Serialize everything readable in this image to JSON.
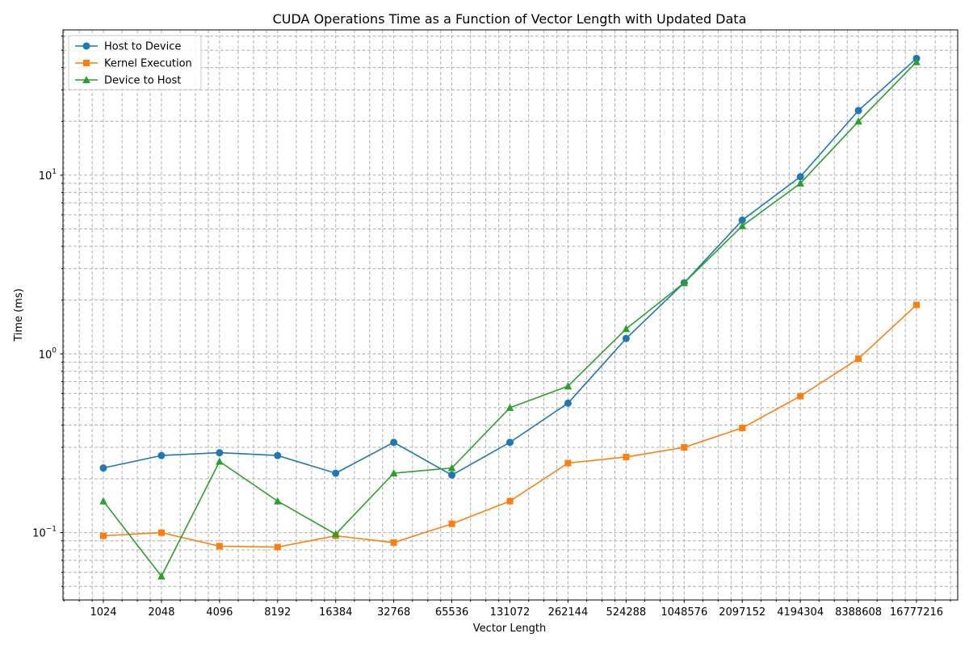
{
  "chart_data": {
    "type": "line",
    "title": "CUDA Operations Time as a Function of Vector Length with Updated Data",
    "xlabel": "Vector Length",
    "ylabel": "Time (ms)",
    "x_scale": "log2",
    "y_scale": "log10",
    "x": [
      1024,
      2048,
      4096,
      8192,
      16384,
      32768,
      65536,
      131072,
      262144,
      524288,
      1048576,
      2097152,
      4194304,
      8388608,
      16777216
    ],
    "x_tick_labels": [
      "1024",
      "2048",
      "4096",
      "8192",
      "16384",
      "32768",
      "65536",
      "131072",
      "262144",
      "524288",
      "1048576",
      "2097152",
      "4194304",
      "8388608",
      "16777216"
    ],
    "y_tick_labels": [
      {
        "base": "10",
        "exp": "−1",
        "value": 0.1
      },
      {
        "base": "10",
        "exp": "0",
        "value": 1
      },
      {
        "base": "10",
        "exp": "1",
        "value": 10
      }
    ],
    "ylim": [
      0.042,
      65
    ],
    "grid": true,
    "legend_position": "upper-left",
    "series": [
      {
        "name": "Host to Device",
        "color": "#1f77b4",
        "marker": "circle",
        "values": [
          0.23,
          0.27,
          0.28,
          0.27,
          0.215,
          0.32,
          0.21,
          0.32,
          0.53,
          1.22,
          2.5,
          5.6,
          9.8,
          23,
          45
        ]
      },
      {
        "name": "Kernel Execution",
        "color": "#ff7f0e",
        "marker": "square",
        "values": [
          0.096,
          0.1,
          0.084,
          0.083,
          0.096,
          0.088,
          0.112,
          0.15,
          0.245,
          0.265,
          0.3,
          0.385,
          0.58,
          0.94,
          1.88
        ]
      },
      {
        "name": "Device to Host",
        "color": "#2ca02c",
        "marker": "triangle",
        "values": [
          0.15,
          0.057,
          0.25,
          0.15,
          0.098,
          0.215,
          0.23,
          0.5,
          0.66,
          1.38,
          2.5,
          5.2,
          9,
          20,
          43
        ]
      }
    ]
  }
}
